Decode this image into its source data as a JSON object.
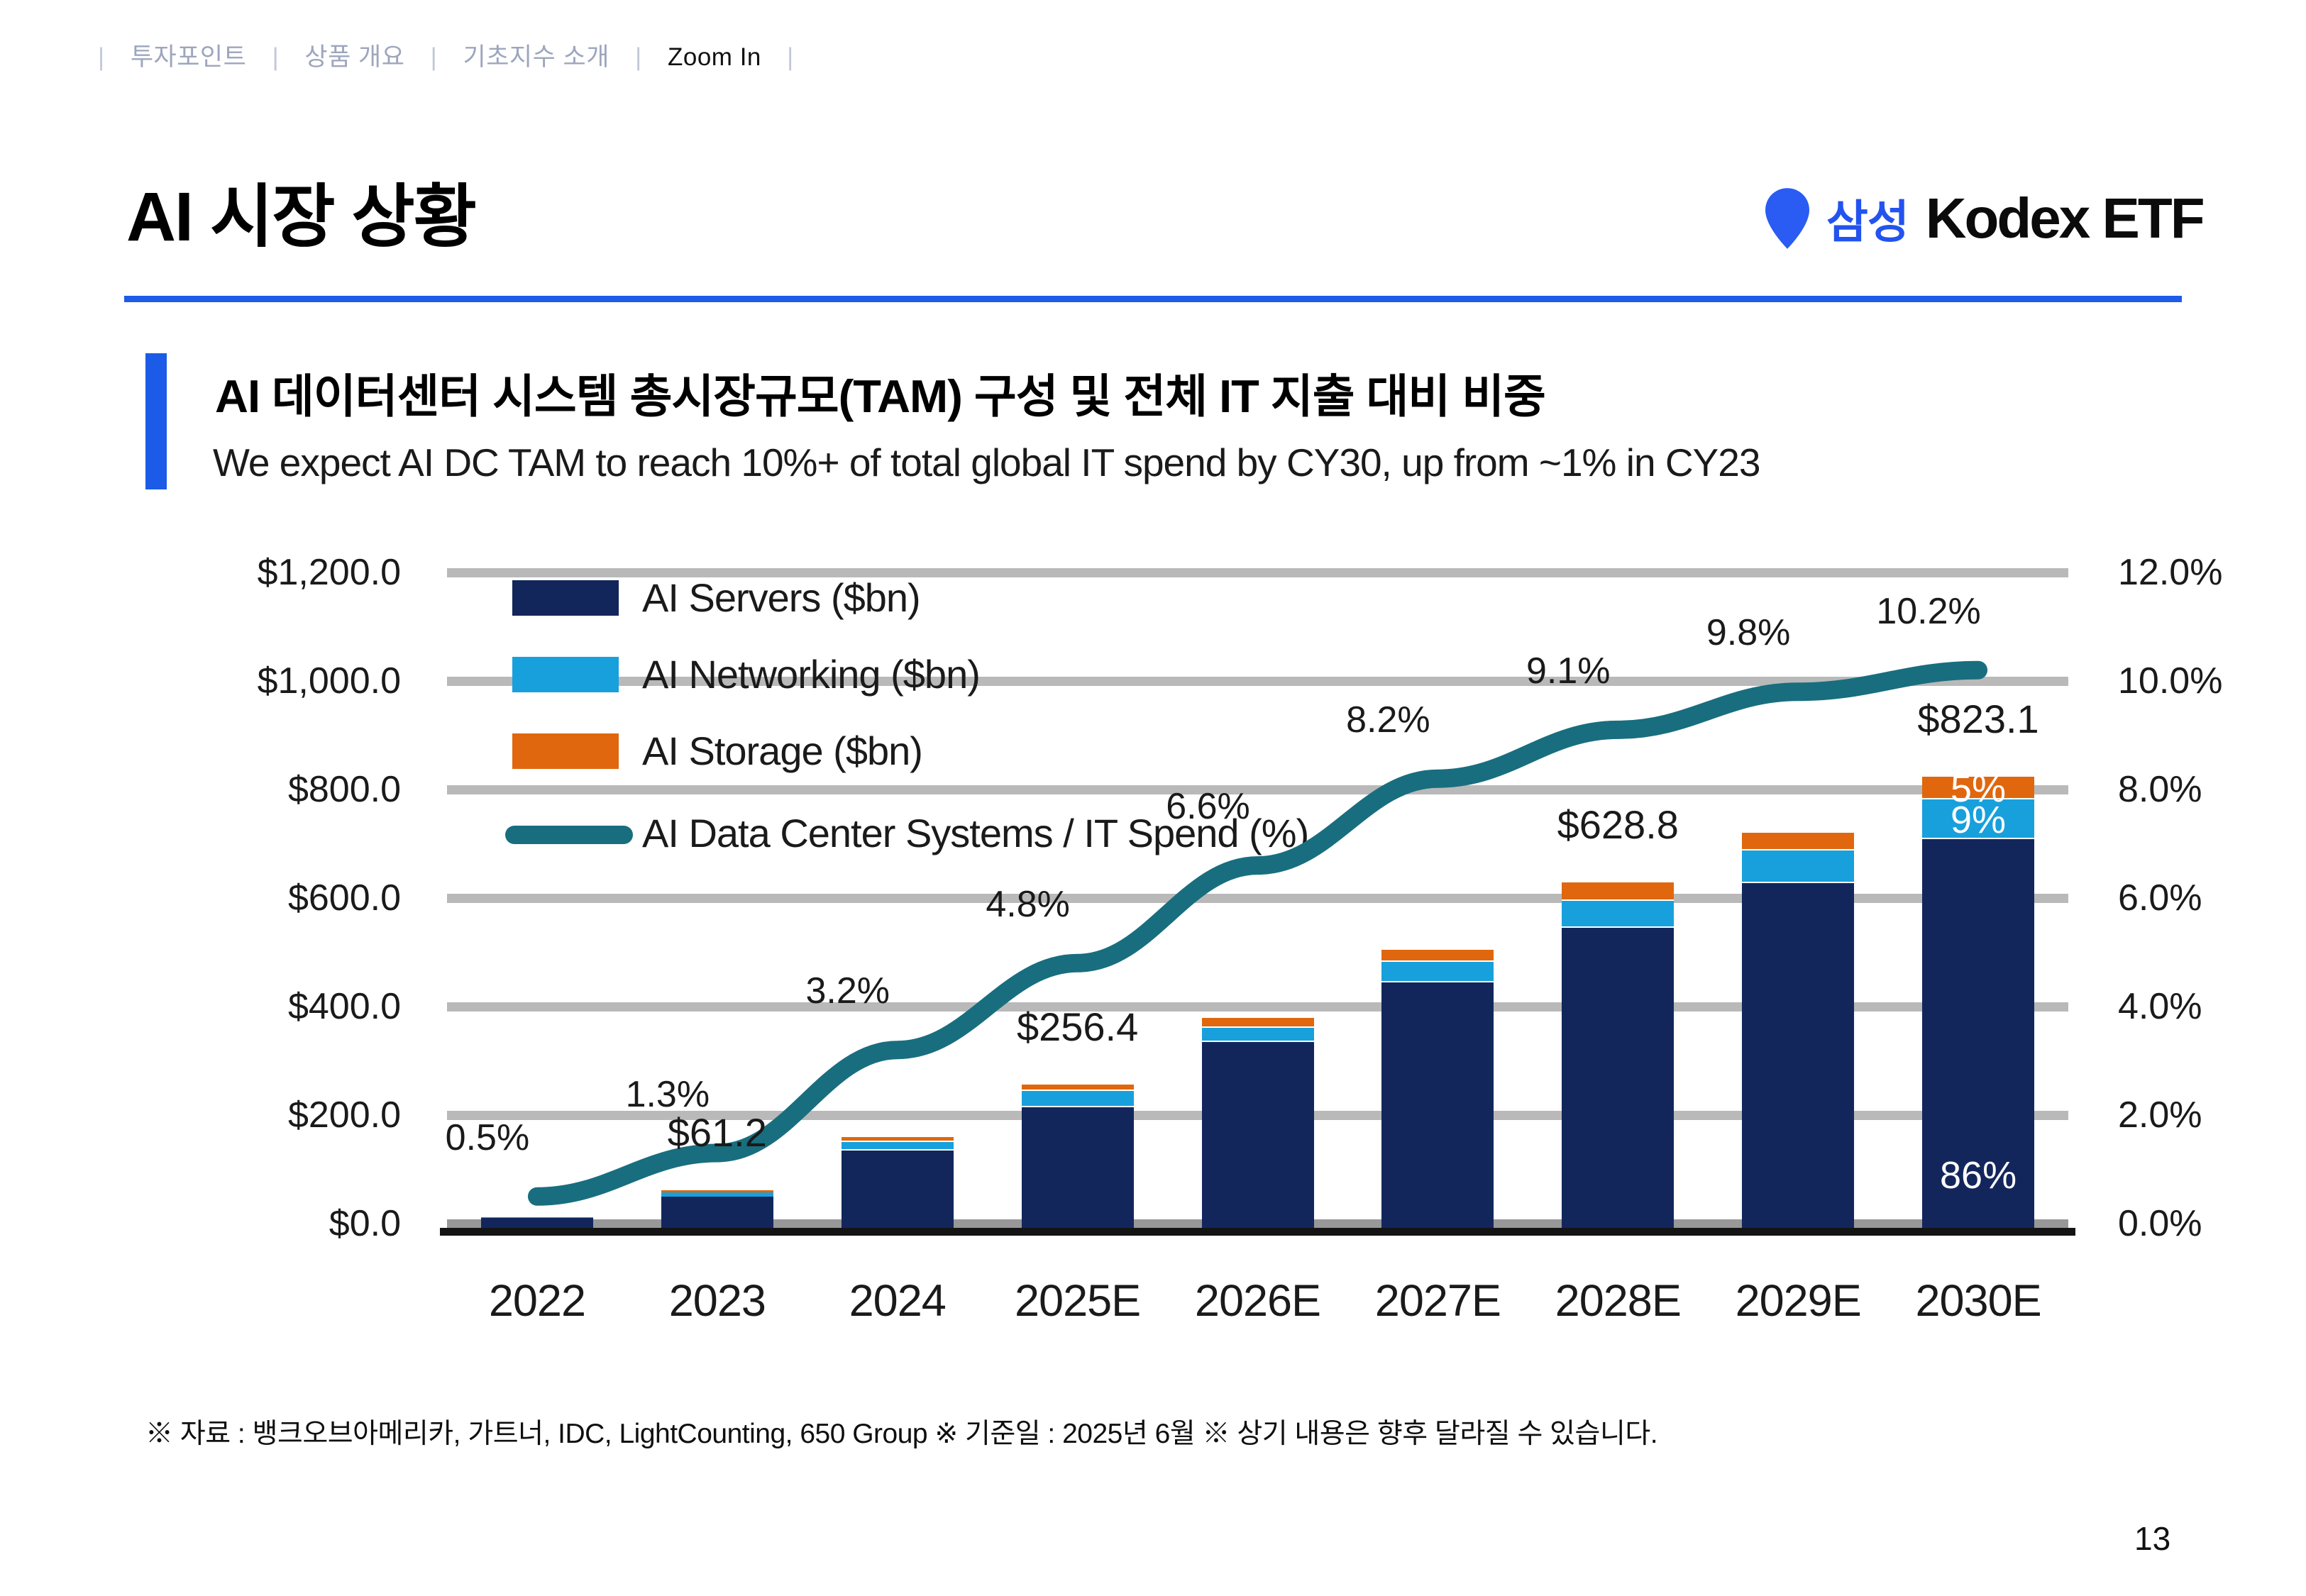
{
  "breadcrumb": {
    "separator": "|",
    "items": [
      {
        "label": "투자포인트",
        "active": false
      },
      {
        "label": "상품 개요",
        "active": false
      },
      {
        "label": "기초지수 소개",
        "active": false
      },
      {
        "label": "Zoom In",
        "active": true
      }
    ]
  },
  "header": {
    "title": "AI 시장 상황",
    "brand": {
      "korean": "삼성",
      "latin": "Kodex ETF"
    }
  },
  "section": {
    "heading": "AI 데이터센터 시스템 총시장규모(TAM) 구성 및 전체 IT 지출 대비 비중",
    "subheading": "We expect AI DC TAM to reach 10%+ of total global IT spend by CY30, up from ~1% in CY23"
  },
  "chart_data": {
    "type": "bar+line",
    "title": "AI 데이터센터 시스템 총시장규모(TAM) 구성 및 전체 IT 지출 대비 비중",
    "categories": [
      "2022",
      "2023",
      "2024",
      "2025E",
      "2026E",
      "2027E",
      "2028E",
      "2029E",
      "2030E"
    ],
    "series": [
      {
        "name": "AI Servers ($bn)",
        "color": "#13265c",
        "values": [
          10.5,
          50,
          135,
          215,
          335,
          445,
          545,
          628,
          708
        ]
      },
      {
        "name": "AI Networking ($bn)",
        "color": "#18a0dc",
        "values": [
          1.0,
          7,
          15,
          30,
          26,
          38,
          50,
          60,
          74
        ]
      },
      {
        "name": "AI Storage ($bn)",
        "color": "#e0670e",
        "values": [
          0.5,
          4.2,
          9,
          11.4,
          18,
          22,
          33.8,
          32,
          41.1
        ]
      }
    ],
    "line_series": {
      "name": "AI Data Center Systems / IT Spend (%)",
      "color": "#186e7e",
      "values": [
        0.5,
        1.3,
        3.2,
        4.8,
        6.6,
        8.2,
        9.1,
        9.8,
        10.2
      ],
      "labels": [
        "0.5%",
        "1.3%",
        "3.2%",
        "4.8%",
        "6.6%",
        "8.2%",
        "9.1%",
        "9.8%",
        "10.2%"
      ]
    },
    "total_labels": [
      "",
      "$61.2",
      "",
      "$256.4",
      "",
      "",
      "$628.8",
      "",
      "$823.1"
    ],
    "in_bar_labels": [
      {
        "category_index": 8,
        "segment_index": 2,
        "label": "5%"
      },
      {
        "category_index": 8,
        "segment_index": 1,
        "label": "9%"
      },
      {
        "category_index": 8,
        "segment_index": 0,
        "label": "86%"
      }
    ],
    "left_axis": {
      "max": 1200,
      "step": 200,
      "tick_labels": [
        "$1,200.0",
        "$1,000.0",
        "$800.0",
        "$600.0",
        "$400.0",
        "$200.0",
        "$0.0"
      ]
    },
    "right_axis": {
      "max": 12,
      "step": 2,
      "tick_labels": [
        "12.0%",
        "10.0%",
        "8.0%",
        "6.0%",
        "4.0%",
        "2.0%",
        "0.0%"
      ]
    },
    "legend_position": "top-left-inside",
    "grid": true
  },
  "colors": {
    "accent_blue": "#1b5be8",
    "rule_blue": "#1e5be9",
    "logo_blue": "#2a5bf3",
    "logo_kr_blue": "#2353ef",
    "gridline": "#b9b9b9",
    "zero_gridline": "#989898",
    "axis_line": "#141414",
    "navy": "#13265c",
    "light_blue": "#18a0dc",
    "orange": "#e0670e",
    "teal": "#186e7e"
  },
  "footnote": "※ 자료 : 뱅크오브아메리카, 가트너, IDC, LightCounting, 650 Group ※ 기준일 : 2025년 6월 ※ 상기 내용은 향후 달라질 수 있습니다.",
  "page_number": "13"
}
